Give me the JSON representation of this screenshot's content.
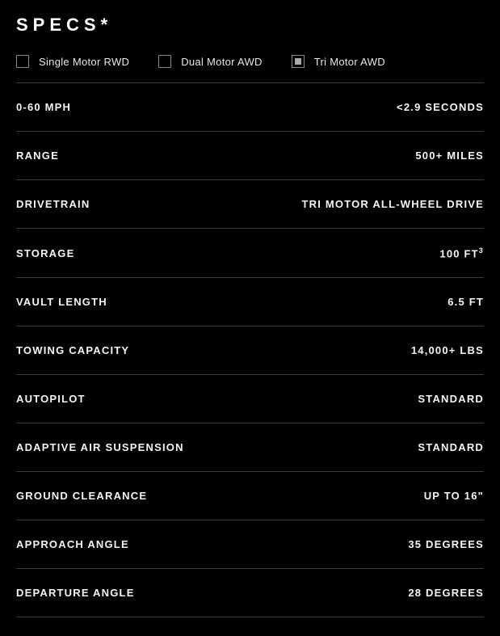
{
  "title": "SPECS*",
  "options": [
    {
      "label": "Single Motor RWD",
      "selected": false
    },
    {
      "label": "Dual Motor AWD",
      "selected": false
    },
    {
      "label": "Tri Motor AWD",
      "selected": true
    }
  ],
  "specs": [
    {
      "label": "0-60 MPH",
      "value": "<2.9 SECONDS"
    },
    {
      "label": "RANGE",
      "value": "500+ MILES"
    },
    {
      "label": "DRIVETRAIN",
      "value": "TRI MOTOR ALL-WHEEL DRIVE"
    },
    {
      "label": "STORAGE",
      "value": "100 FT",
      "sup": "3"
    },
    {
      "label": "VAULT LENGTH",
      "value": "6.5 FT"
    },
    {
      "label": "TOWING CAPACITY",
      "value": "14,000+ LBS"
    },
    {
      "label": "AUTOPILOT",
      "value": "STANDARD"
    },
    {
      "label": "ADAPTIVE AIR SUSPENSION",
      "value": "STANDARD"
    },
    {
      "label": "GROUND CLEARANCE",
      "value": "UP TO 16\""
    },
    {
      "label": "APPROACH ANGLE",
      "value": "35 DEGREES"
    },
    {
      "label": "DEPARTURE ANGLE",
      "value": "28 DEGREES"
    }
  ],
  "colors": {
    "background": "#000000",
    "text": "#ffffff",
    "divider": "#3a3a3a",
    "checkbox_border": "#888888",
    "checkbox_fill": "#aaaaaa"
  },
  "typography": {
    "title_fontsize": 22,
    "title_letterspacing": 6,
    "option_fontsize": 13,
    "row_fontsize": 13,
    "row_letterspacing": 1.2
  }
}
